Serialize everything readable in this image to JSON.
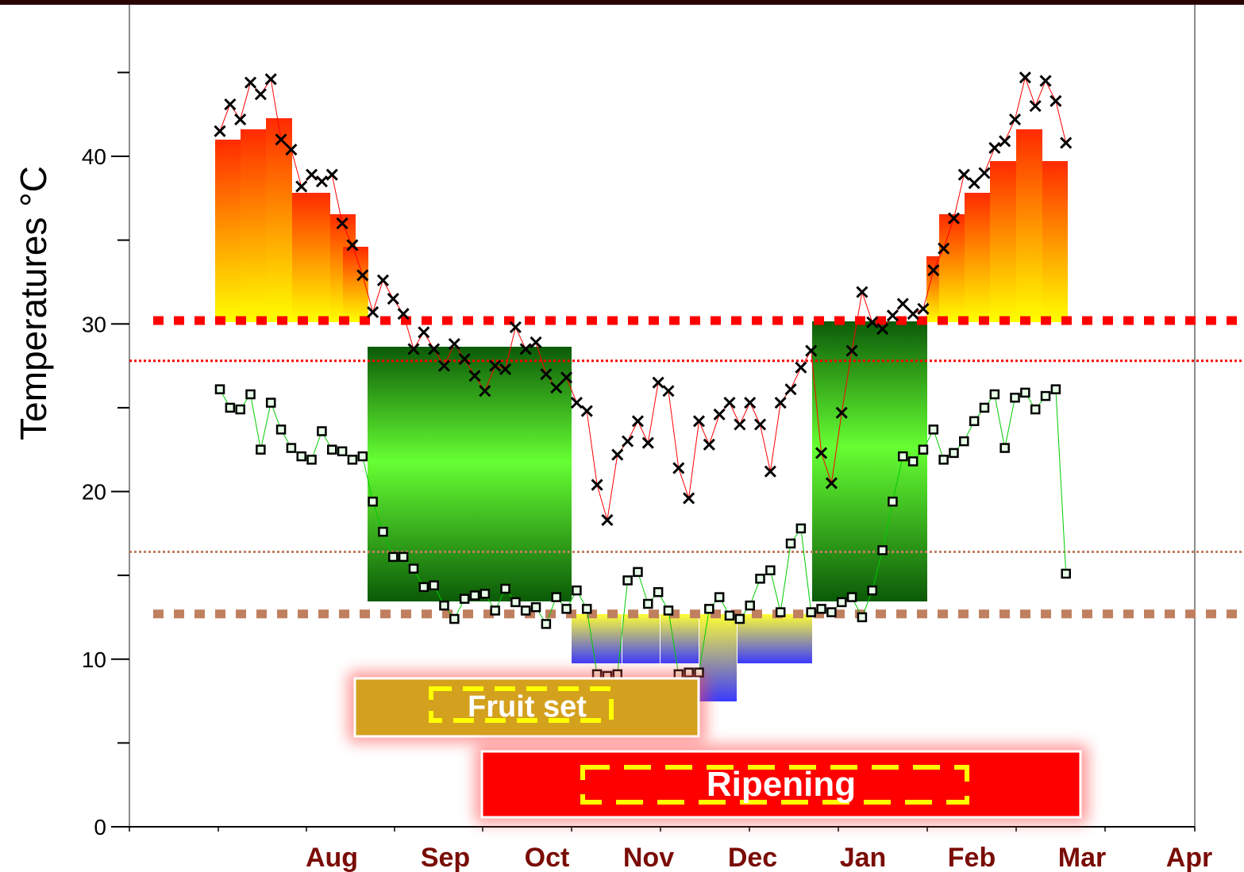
{
  "chart_data": {
    "type": "scatter",
    "ylabel": "Temperatures °C",
    "ylim": [
      0,
      47
    ],
    "y_ticks": [
      0,
      10,
      20,
      30,
      40
    ],
    "month_labels": [
      "Aug",
      "Sep",
      "Oct",
      "Nov",
      "Dec",
      "Jan",
      "Feb",
      "Mar",
      "Apr"
    ],
    "phases": [
      {
        "name": "Fruit set",
        "color": "#d4a11e"
      },
      {
        "name": "Ripening",
        "color": "#ff0000"
      }
    ],
    "thresholds": [
      {
        "value": 30.2,
        "style": "thick",
        "color": "#ff0000"
      },
      {
        "value": 27.8,
        "style": "thin",
        "color": "#ff0000"
      },
      {
        "value": 16.4,
        "style": "thin",
        "color": "#c08060"
      },
      {
        "value": 12.7,
        "style": "thick",
        "color": "#c08060"
      }
    ],
    "x_range": [
      0,
      250
    ],
    "series": [
      {
        "marker": "x",
        "color": "#ff0000",
        "x": [
          0,
          3,
          6,
          9,
          12,
          15,
          18,
          21,
          24,
          27,
          30,
          33,
          36,
          39,
          42,
          45,
          48,
          51,
          54,
          57,
          60,
          63,
          66,
          69,
          72,
          75,
          78,
          81,
          84,
          87,
          90,
          93,
          96,
          99,
          102,
          105,
          108,
          111,
          114,
          117,
          120,
          123,
          126,
          129,
          132,
          135,
          138,
          141,
          144,
          147,
          150,
          153,
          156,
          159,
          162,
          165,
          168,
          171,
          174,
          177,
          180,
          183,
          186,
          189,
          192,
          195,
          198,
          201,
          204,
          207,
          210,
          213,
          216,
          219,
          222,
          225,
          228,
          231,
          234,
          237,
          240,
          243,
          246,
          249
        ],
        "y": [
          41.5,
          43.1,
          42.2,
          44.4,
          43.7,
          44.6,
          41.0,
          40.4,
          38.2,
          38.9,
          38.5,
          38.9,
          36.0,
          34.7,
          32.9,
          30.7,
          32.6,
          31.5,
          30.6,
          28.5,
          29.5,
          28.5,
          27.5,
          28.8,
          27.9,
          26.9,
          26.0,
          27.5,
          27.3,
          29.8,
          28.5,
          28.9,
          27.0,
          26.2,
          26.8,
          25.3,
          24.8,
          20.4,
          18.3,
          22.2,
          23.0,
          24.2,
          22.9,
          26.5,
          26.0,
          21.4,
          19.6,
          24.2,
          22.8,
          24.6,
          25.3,
          24.0,
          25.3,
          24.0,
          21.2,
          25.3,
          26.1,
          27.4,
          28.4,
          22.3,
          20.5,
          24.7,
          28.4,
          31.9,
          30.1,
          29.7,
          30.5,
          31.2,
          30.6,
          30.9,
          33.2,
          34.5,
          36.3,
          38.9,
          38.4,
          39.0,
          40.5,
          40.9,
          42.2,
          44.7,
          43.0,
          44.5,
          43.3,
          40.8
        ]
      },
      {
        "marker": "square",
        "color": "#00cc00",
        "x": [
          0,
          3,
          6,
          9,
          12,
          15,
          18,
          21,
          24,
          27,
          30,
          33,
          36,
          39,
          42,
          45,
          48,
          51,
          54,
          57,
          60,
          63,
          66,
          69,
          72,
          75,
          78,
          81,
          84,
          87,
          90,
          93,
          96,
          99,
          102,
          105,
          108,
          111,
          114,
          117,
          120,
          123,
          126,
          129,
          132,
          135,
          138,
          141,
          144,
          147,
          150,
          153,
          156,
          159,
          162,
          165,
          168,
          171,
          174,
          177,
          180,
          183,
          186,
          189,
          192,
          195,
          198,
          201,
          204,
          207,
          210,
          213,
          216,
          219,
          222,
          225,
          228,
          231,
          234,
          237,
          240,
          243,
          246,
          249
        ],
        "y": [
          26.1,
          25.0,
          24.9,
          25.8,
          22.5,
          25.3,
          23.7,
          22.6,
          22.1,
          21.9,
          23.6,
          22.5,
          22.4,
          21.9,
          22.1,
          19.4,
          17.6,
          16.1,
          16.1,
          15.4,
          14.3,
          14.4,
          13.2,
          12.4,
          13.6,
          13.8,
          13.9,
          12.9,
          14.2,
          13.4,
          12.9,
          13.1,
          12.1,
          13.7,
          13.0,
          14.1,
          13.0,
          9.1,
          9.0,
          9.1,
          14.7,
          15.2,
          13.3,
          14.0,
          12.9,
          9.1,
          9.2,
          9.2,
          13.0,
          13.7,
          12.6,
          12.4,
          13.2,
          14.8,
          15.3,
          12.8,
          16.9,
          17.8,
          12.8,
          13.0,
          12.8,
          13.4,
          13.7,
          12.5,
          14.1,
          16.5,
          19.4,
          22.1,
          21.8,
          22.5,
          23.7,
          21.9,
          22.3,
          23.0,
          24.2,
          25.0,
          25.8,
          22.6,
          25.6,
          25.9,
          24.9,
          25.7,
          26.1,
          15.1
        ]
      }
    ]
  }
}
